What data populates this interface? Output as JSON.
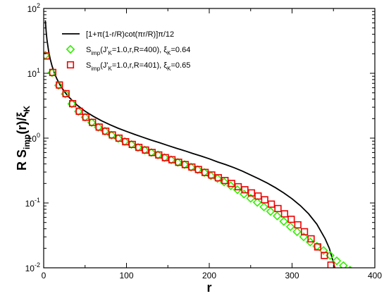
{
  "chart_data": {
    "type": "line",
    "xlabel": "r",
    "ylabel_parts": {
      "main": "R S",
      "sub": "imp",
      "mid": "(r)/ξ",
      "sub2": "K"
    },
    "xlim": [
      0,
      400
    ],
    "ylim": [
      0.01,
      100
    ],
    "yscale": "log",
    "x_ticks": [
      0,
      100,
      200,
      300,
      400
    ],
    "y_ticks": [
      {
        "value": 0.01,
        "base": "10",
        "exp": "-2"
      },
      {
        "value": 0.1,
        "base": "10",
        "exp": "-1"
      },
      {
        "value": 1,
        "base": "10",
        "exp": "0"
      },
      {
        "value": 10,
        "base": "10",
        "exp": "1"
      },
      {
        "value": 100,
        "base": "10",
        "exp": "2"
      }
    ],
    "legend_placement": "top-left",
    "series": [
      {
        "name": "[1+π(1-r/R)cot(πr/R)]π/12",
        "legend_parts": [
          [
            "[1+π(1-r/R)cot(πr/R)]π/12",
            ""
          ]
        ],
        "kind": "line",
        "color": "#000000",
        "formula_R": 400,
        "x_samples": [
          2,
          3,
          4,
          6,
          8,
          10,
          13,
          16,
          20,
          25,
          30,
          40,
          50,
          60,
          70,
          80,
          90,
          100,
          110,
          120,
          130,
          140,
          150,
          160,
          170,
          180,
          190,
          200,
          210,
          220,
          230,
          240,
          250,
          260,
          270,
          280,
          290,
          300,
          310,
          320,
          330,
          340,
          345,
          350,
          352,
          354
        ],
        "y": [
          65.4,
          43.6,
          32.7,
          21.8,
          16.4,
          13.1,
          10.05,
          8.17,
          6.53,
          5.22,
          4.35,
          3.26,
          2.6,
          2.17,
          1.85,
          1.61,
          1.42,
          1.27,
          1.14,
          1.03,
          0.93,
          0.85,
          0.77,
          0.7,
          0.64,
          0.58,
          0.53,
          0.48,
          0.43,
          0.39,
          0.35,
          0.31,
          0.27,
          0.235,
          0.203,
          0.172,
          0.143,
          0.116,
          0.091,
          0.068,
          0.047,
          0.028,
          0.02,
          0.012,
          0.0096,
          0.0073
        ]
      },
      {
        "name": "S_imp(J'_K=1.0,r,R=400), ξ_K=0.64",
        "legend_parts": [
          [
            "S",
            ""
          ],
          [
            "imp",
            "sub"
          ],
          [
            "(J'",
            ""
          ],
          [
            "K",
            "sub"
          ],
          [
            "=1.0,r,R=400), ξ",
            ""
          ],
          [
            "K",
            "sub"
          ],
          [
            "=0.64",
            ""
          ]
        ],
        "kind": "diamond",
        "color": "#33ee00",
        "x": [
          2,
          10,
          18,
          26,
          34,
          42,
          50,
          58,
          66,
          74,
          82,
          90,
          98,
          106,
          114,
          122,
          130,
          138,
          146,
          154,
          162,
          170,
          178,
          186,
          194,
          202,
          210,
          218,
          226,
          234,
          242,
          250,
          258,
          266,
          274,
          282,
          290,
          298,
          306,
          314,
          322,
          330,
          338,
          346,
          354,
          362,
          370
        ],
        "y": [
          19.0,
          10.2,
          6.5,
          4.8,
          3.38,
          2.58,
          2.1,
          1.74,
          1.47,
          1.28,
          1.11,
          0.99,
          0.89,
          0.8,
          0.72,
          0.655,
          0.6,
          0.551,
          0.501,
          0.463,
          0.423,
          0.391,
          0.356,
          0.327,
          0.295,
          0.262,
          0.238,
          0.21,
          0.184,
          0.16,
          0.137,
          0.118,
          0.102,
          0.087,
          0.074,
          0.063,
          0.052,
          0.043,
          0.036,
          0.03,
          0.025,
          0.0215,
          0.0185,
          0.0155,
          0.0128,
          0.0108,
          0.0092
        ]
      },
      {
        "name": "S_imp(J'_K=1.0,r,R=401), ξ_K=0.65",
        "legend_parts": [
          [
            "S",
            ""
          ],
          [
            "imp",
            "sub"
          ],
          [
            "(J'",
            ""
          ],
          [
            "K",
            "sub"
          ],
          [
            "=1.0,r,R=401), ξ",
            ""
          ],
          [
            "K",
            "sub"
          ],
          [
            "=0.65",
            ""
          ]
        ],
        "kind": "square",
        "color": "#ee0000",
        "x": [
          3,
          11,
          19,
          27,
          35,
          43,
          51,
          59,
          67,
          75,
          83,
          91,
          99,
          107,
          115,
          123,
          131,
          139,
          147,
          155,
          163,
          171,
          179,
          187,
          195,
          203,
          211,
          219,
          227,
          235,
          243,
          251,
          259,
          267,
          275,
          283,
          291,
          299,
          307,
          315,
          323,
          331,
          339,
          347
        ],
        "y": [
          18.5,
          10.3,
          6.6,
          4.85,
          3.4,
          2.6,
          2.1,
          1.75,
          1.48,
          1.28,
          1.12,
          1.0,
          0.88,
          0.8,
          0.72,
          0.655,
          0.6,
          0.55,
          0.5,
          0.464,
          0.424,
          0.391,
          0.358,
          0.328,
          0.296,
          0.27,
          0.245,
          0.222,
          0.2,
          0.178,
          0.16,
          0.143,
          0.128,
          0.112,
          0.096,
          0.082,
          0.068,
          0.056,
          0.046,
          0.036,
          0.028,
          0.021,
          0.0155,
          0.011
        ]
      }
    ]
  }
}
